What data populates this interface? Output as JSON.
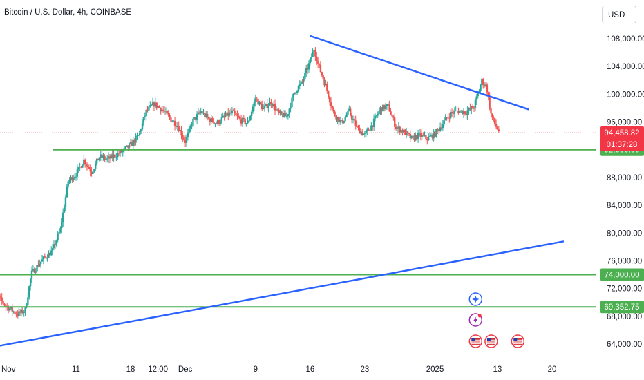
{
  "header": {
    "title": "Bitcoin / U.S. Dollar, 4h, COINBASE",
    "currency": "USD"
  },
  "chart_data": {
    "type": "candlestick",
    "y_ticks": [
      108000,
      104000,
      100000,
      96000,
      88000,
      84000,
      80000,
      76000,
      72000,
      68000,
      64000
    ],
    "y_tick_labels": [
      "108,000.00",
      "104,000.00",
      "100,000.00",
      "96,000.00",
      "88,000.00",
      "84,000.00",
      "80,000.00",
      "76,000.00",
      "72,000.00",
      "68,000.00",
      "64,000.00"
    ],
    "x_tick_labels": [
      "Nov",
      "11",
      "18",
      "12:00",
      "Dec",
      "9",
      "16",
      "23",
      "2025",
      "13",
      "20"
    ],
    "x_tick_days": [
      -1,
      11,
      18,
      21.5,
      25,
      34,
      41,
      48,
      57,
      65,
      72
    ],
    "price_close": [
      [
        0,
        72000
      ],
      [
        2,
        69500
      ],
      [
        3.5,
        68300
      ],
      [
        4.5,
        68900
      ],
      [
        5.3,
        74200
      ],
      [
        6.5,
        75900
      ],
      [
        8,
        77500
      ],
      [
        9,
        80500
      ],
      [
        10,
        87500
      ],
      [
        11,
        88500
      ],
      [
        12,
        90500
      ],
      [
        13,
        88800
      ],
      [
        14,
        91000
      ],
      [
        15,
        90600
      ],
      [
        16,
        91200
      ],
      [
        17,
        91800
      ],
      [
        18,
        92700
      ],
      [
        19,
        94000
      ],
      [
        20,
        97500
      ],
      [
        21,
        98600
      ],
      [
        22,
        97800
      ],
      [
        23,
        96600
      ],
      [
        24,
        95500
      ],
      [
        25,
        93200
      ],
      [
        26,
        96200
      ],
      [
        27,
        97500
      ],
      [
        28,
        96400
      ],
      [
        29,
        95800
      ],
      [
        30,
        96700
      ],
      [
        31,
        97400
      ],
      [
        32,
        96300
      ],
      [
        33,
        95800
      ],
      [
        34,
        99400
      ],
      [
        35,
        97900
      ],
      [
        36,
        98900
      ],
      [
        37,
        97100
      ],
      [
        38,
        96800
      ],
      [
        39,
        100300
      ],
      [
        40,
        101800
      ],
      [
        41,
        104800
      ],
      [
        41.5,
        106600
      ],
      [
        42,
        104400
      ],
      [
        43,
        101200
      ],
      [
        44,
        97300
      ],
      [
        45,
        95900
      ],
      [
        46,
        97500
      ],
      [
        47,
        95100
      ],
      [
        48,
        94100
      ],
      [
        49,
        95700
      ],
      [
        50,
        97900
      ],
      [
        51,
        98300
      ],
      [
        52,
        95200
      ],
      [
        53,
        94600
      ],
      [
        54,
        93600
      ],
      [
        55,
        94100
      ],
      [
        56,
        93600
      ],
      [
        57,
        94300
      ],
      [
        58,
        95800
      ],
      [
        59,
        97200
      ],
      [
        60,
        97600
      ],
      [
        61,
        97400
      ],
      [
        62,
        98200
      ],
      [
        63,
        101900
      ],
      [
        63.6,
        101100
      ],
      [
        64.2,
        96900
      ],
      [
        64.8,
        95400
      ],
      [
        65.3,
        94459
      ]
    ],
    "last_price": "94,458.82",
    "countdown": "01:37:28",
    "support_lines": [
      {
        "price": 92000,
        "label": "92,000.00",
        "start_day": 8
      },
      {
        "price": 74000,
        "label": "74,000.00",
        "start_day": 0
      },
      {
        "price": 69352.75,
        "label": "69,352.75",
        "start_day": 0
      }
    ],
    "resistance_trendline": [
      [
        41,
        108400
      ],
      [
        69,
        97800
      ]
    ],
    "support_trendline": [
      [
        0,
        63500
      ],
      [
        73.5,
        78800
      ]
    ],
    "colors": {
      "up": "#26a69a",
      "down": "#ef5350",
      "trendline": "#2962ff",
      "level": "#4caf50",
      "last_price": "#f23645"
    },
    "events": {
      "row1": [
        "economic-event-icon"
      ],
      "row2": [
        "flash-event-icon"
      ],
      "row3": [
        "us-flag-icon",
        "us-flag-icon",
        "us-flag-icon"
      ]
    }
  }
}
